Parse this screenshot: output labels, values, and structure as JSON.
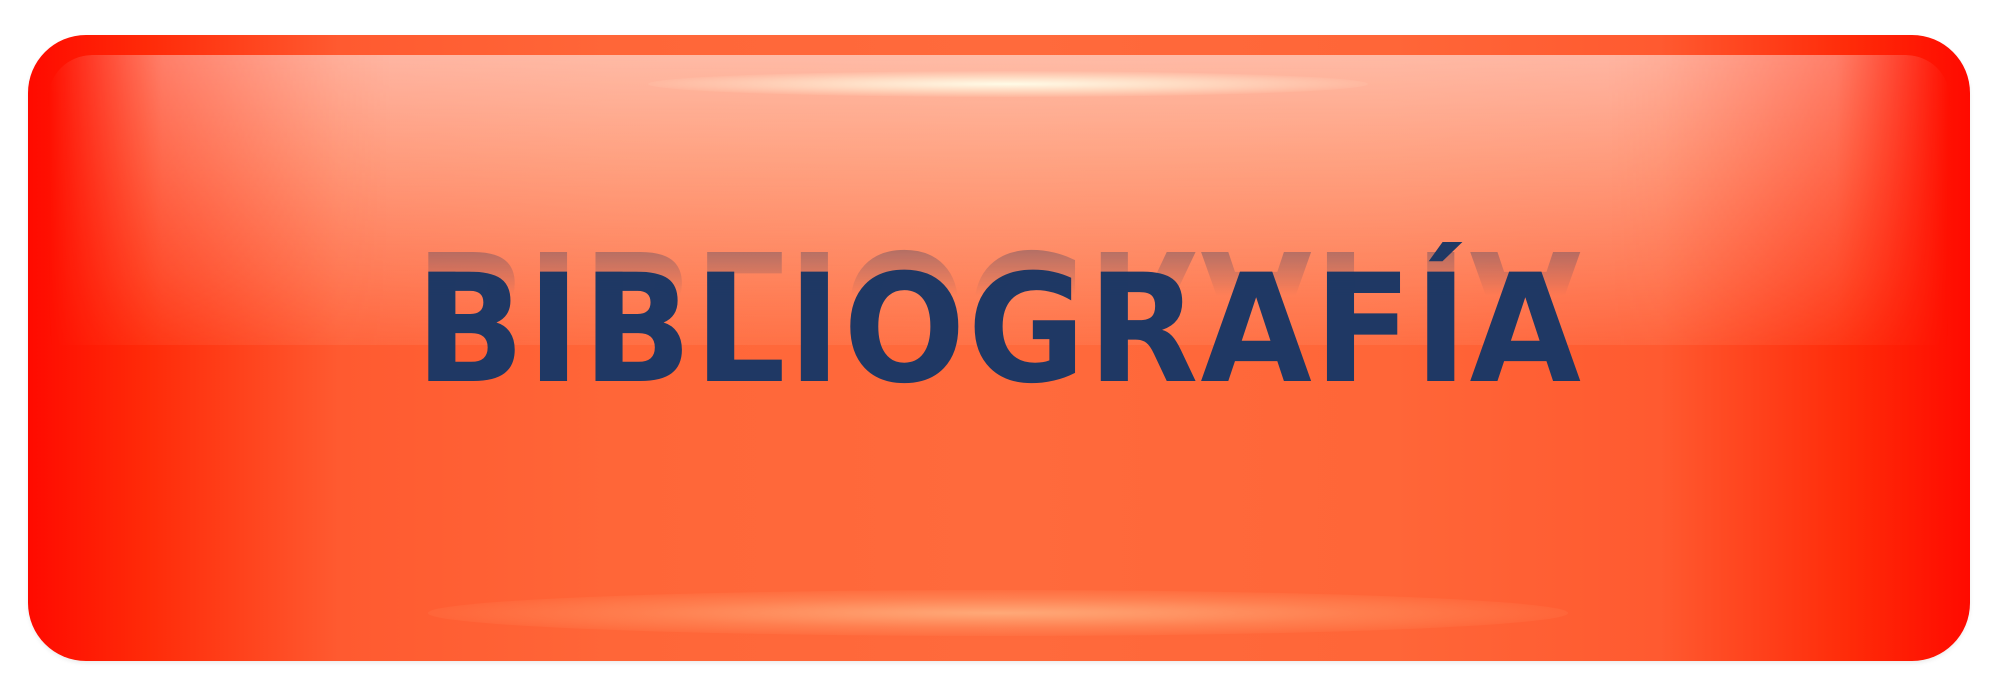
{
  "button": {
    "label": "BIBLIOGRAFÍA"
  },
  "colors": {
    "background": "#ffffff",
    "button_edge_red": "#ff0a00",
    "button_center_orange": "#ff6a3c",
    "text_navy": "#1f3864"
  }
}
